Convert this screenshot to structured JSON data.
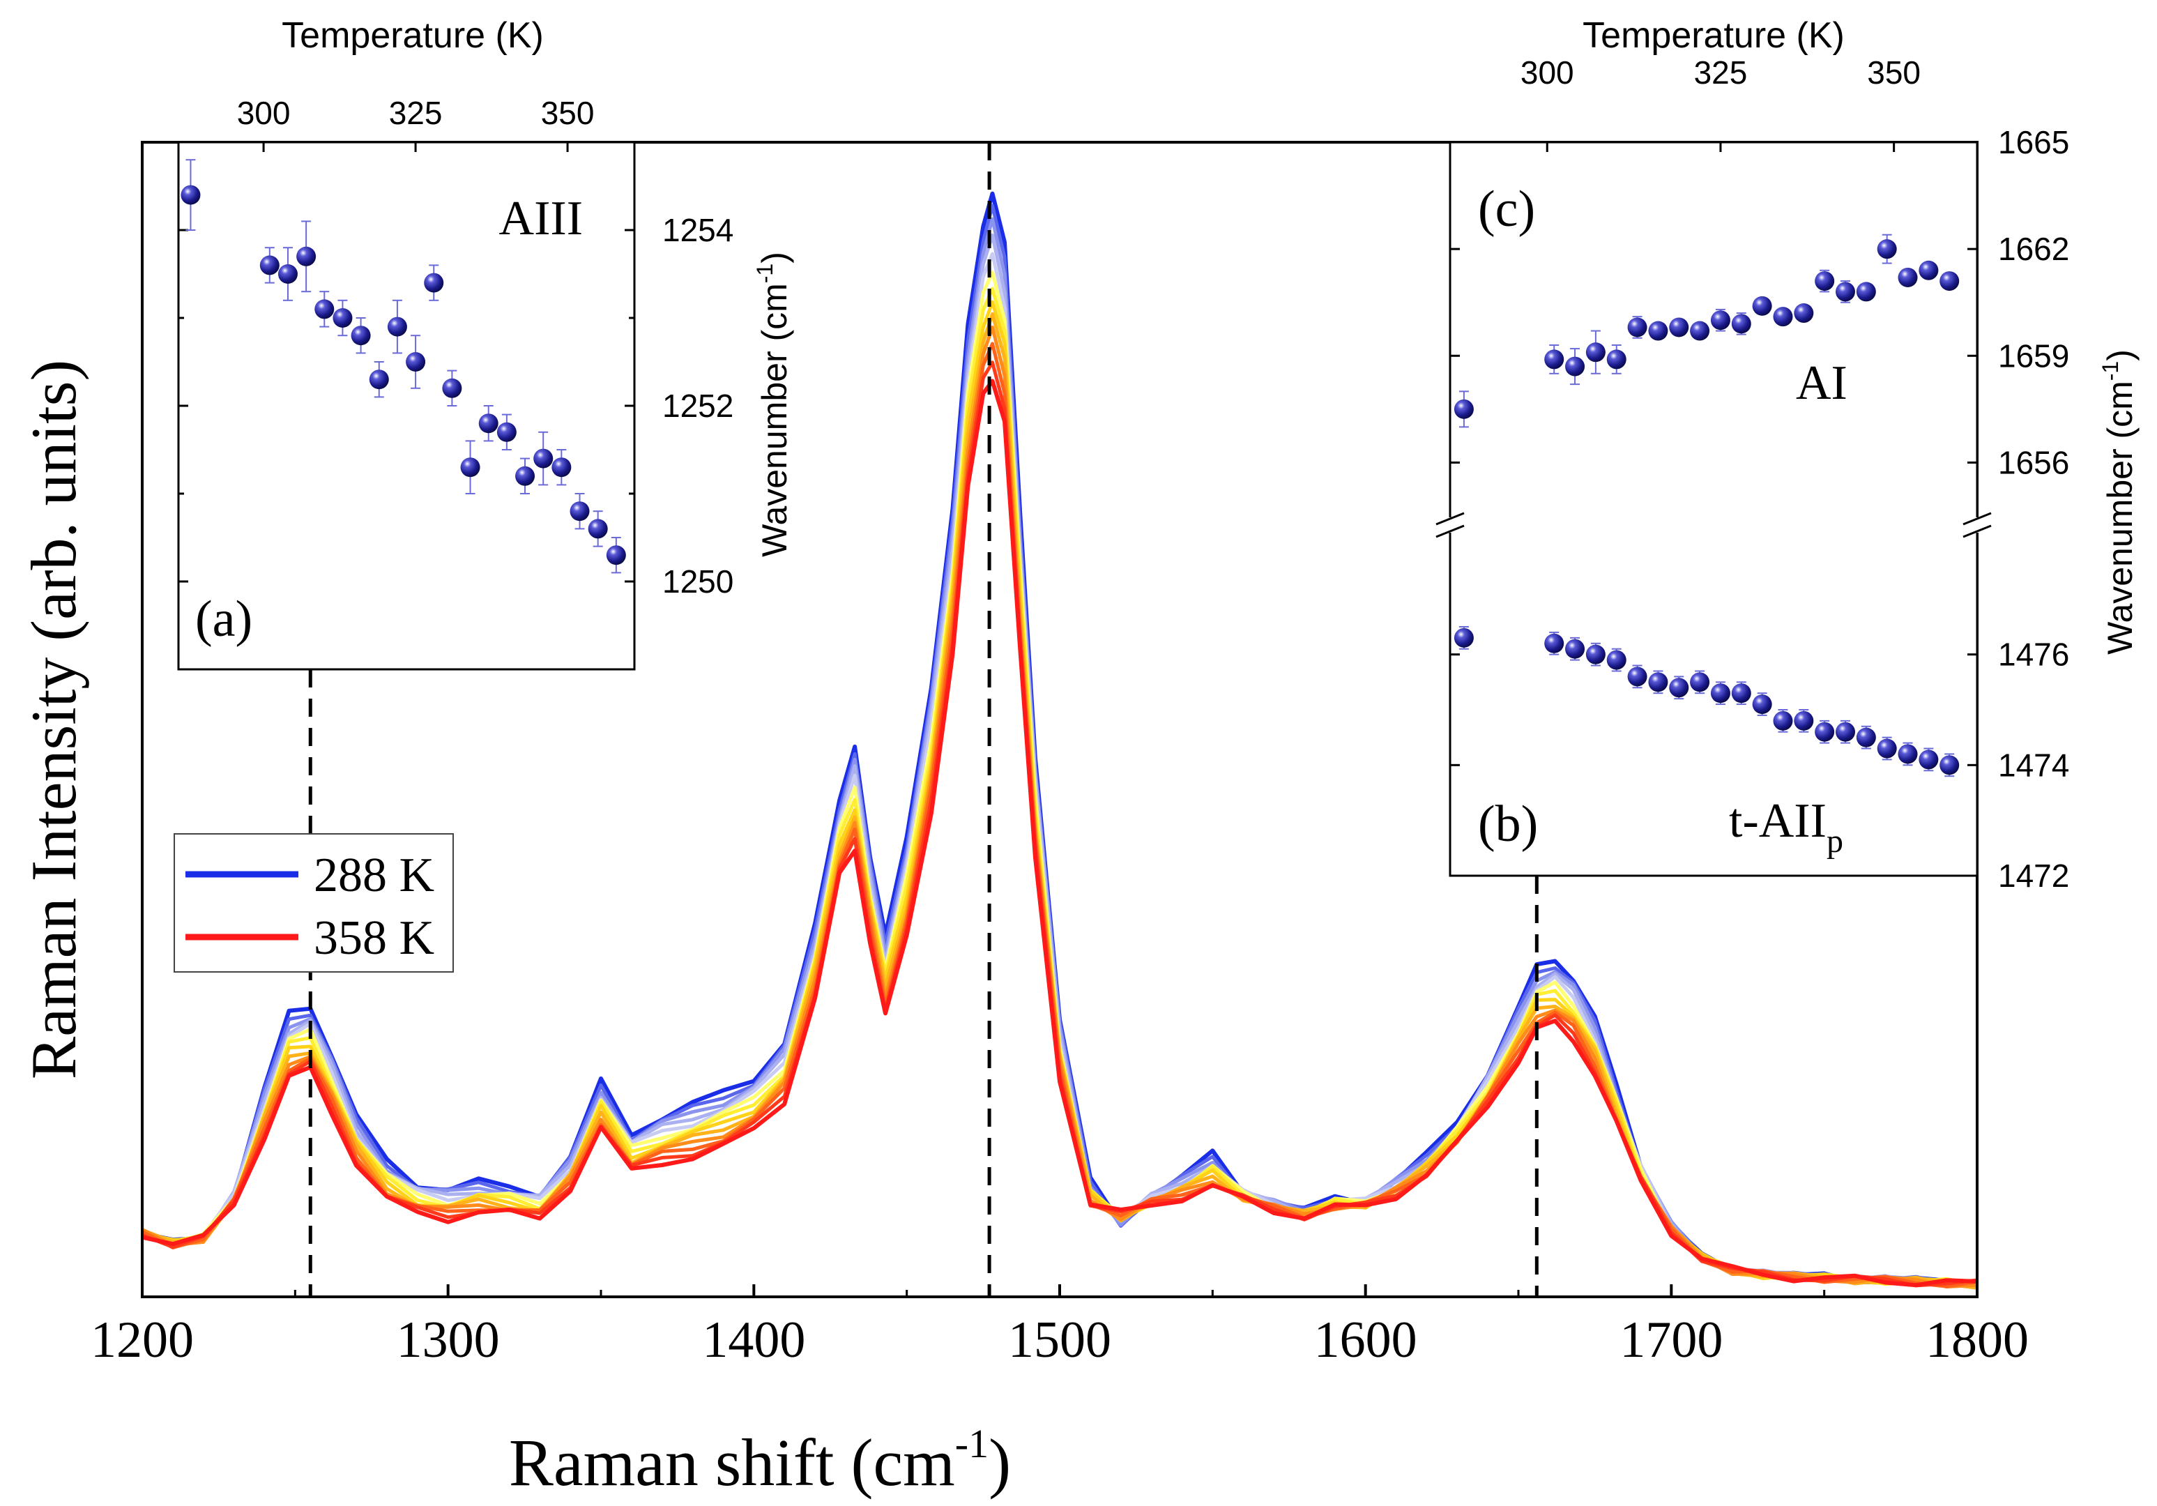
{
  "chart_data": [
    {
      "id": "main",
      "type": "line",
      "xlabel": "Raman shift (cm",
      "xlabel_sup": "-1",
      "xlabel_close": ")",
      "ylabel": "Raman Intensity (arb. units)",
      "xlim": [
        1200,
        1800
      ],
      "ylim": [
        0,
        100
      ],
      "xticks": [
        1200,
        1300,
        1400,
        1500,
        1600,
        1700,
        1800
      ],
      "peak_markers": [
        1255,
        1477,
        1656
      ],
      "legend": [
        {
          "label": "288 K",
          "color": "#1a2ee8"
        },
        {
          "label": "358 K",
          "color": "#ff1a1a"
        }
      ],
      "series_colors": [
        "#1a2ee8",
        "#5a66ec",
        "#8a93ee",
        "#aab0f0",
        "#c9ccf2",
        "#ffff70",
        "#ffee33",
        "#ffd21a",
        "#ffb21a",
        "#ff8c1a",
        "#ff621a",
        "#ff3a1a",
        "#ff1a1a"
      ],
      "spectrum_288K": {
        "x": [
          1200,
          1210,
          1220,
          1230,
          1240,
          1248,
          1255,
          1262,
          1270,
          1280,
          1290,
          1300,
          1310,
          1320,
          1330,
          1340,
          1350,
          1360,
          1370,
          1380,
          1390,
          1400,
          1410,
          1420,
          1428,
          1433,
          1438,
          1443,
          1450,
          1458,
          1465,
          1470,
          1475,
          1478,
          1482,
          1487,
          1492,
          1500,
          1510,
          1520,
          1530,
          1540,
          1550,
          1560,
          1570,
          1580,
          1590,
          1600,
          1610,
          1620,
          1630,
          1640,
          1650,
          1656,
          1662,
          1668,
          1675,
          1682,
          1690,
          1700,
          1710,
          1720,
          1730,
          1740,
          1750,
          1760,
          1770,
          1780,
          1790,
          1800
        ],
        "y": [
          5.5,
          4.6,
          5.2,
          9,
          18,
          24.5,
          25.2,
          21,
          15.5,
          11.8,
          9.8,
          9.3,
          9.9,
          9.6,
          9,
          12,
          18.6,
          14.2,
          15.6,
          16.6,
          17.7,
          19,
          22,
          32,
          43,
          48,
          38,
          31,
          40,
          53,
          68,
          84,
          93,
          95.7,
          91,
          68,
          47,
          24,
          10,
          6.4,
          8.8,
          10.3,
          12.4,
          9.2,
          8.2,
          7.4,
          8.6,
          8.4,
          10.1,
          12.2,
          15.2,
          19.5,
          25,
          28.5,
          29.3,
          27.6,
          24,
          18.3,
          11.6,
          6.3,
          3.4,
          2.3,
          2,
          1.8,
          1.7,
          1.5,
          1.5,
          1.4,
          1.2,
          1.1
        ]
      },
      "spectrum_358K": {
        "x": [
          1200,
          1210,
          1220,
          1230,
          1240,
          1248,
          1255,
          1262,
          1270,
          1280,
          1290,
          1300,
          1310,
          1320,
          1330,
          1340,
          1350,
          1360,
          1370,
          1380,
          1390,
          1400,
          1410,
          1420,
          1428,
          1433,
          1438,
          1443,
          1450,
          1458,
          1465,
          1470,
          1475,
          1478,
          1482,
          1487,
          1492,
          1500,
          1510,
          1520,
          1530,
          1540,
          1550,
          1560,
          1570,
          1580,
          1590,
          1600,
          1610,
          1620,
          1630,
          1640,
          1650,
          1656,
          1662,
          1668,
          1675,
          1682,
          1690,
          1700,
          1710,
          1720,
          1730,
          1740,
          1750,
          1760,
          1770,
          1780,
          1790,
          1800
        ],
        "y": [
          5.5,
          4.6,
          5,
          8,
          14,
          19,
          19.6,
          16,
          11.6,
          8.4,
          7.2,
          6.8,
          7.4,
          7.2,
          6.8,
          9.5,
          14.6,
          10.8,
          11.6,
          12.2,
          13,
          14.4,
          17,
          26,
          36.4,
          38.6,
          31,
          24.5,
          31,
          42,
          56,
          70,
          78,
          79.6,
          76,
          56,
          38,
          19,
          8,
          7.2,
          8,
          8.6,
          9.5,
          8.4,
          7.5,
          7,
          7.7,
          7.8,
          8.8,
          10.6,
          13.2,
          16.5,
          20.6,
          23.2,
          23.6,
          22.3,
          19.4,
          15,
          9.9,
          5.6,
          3.4,
          2.3,
          1.9,
          1.7,
          1.6,
          1.5,
          1.4,
          1.3,
          1.2,
          1.1
        ]
      }
    },
    {
      "id": "inset-a",
      "type": "scatter",
      "panel_label": "(a)",
      "mode_label": "AIII",
      "xlabel": "Temperature (K)",
      "ylabel": "Wavenumber (cm",
      "ylabel_sup": "-1",
      "ylabel_close": ")",
      "xlim": [
        286,
        361
      ],
      "ylim": [
        1249.0,
        1255.0
      ],
      "xticks": [
        300,
        325,
        350
      ],
      "yticks": [
        1250,
        1252,
        1254
      ],
      "marker_color": "#1a1a8c",
      "points": [
        {
          "t": 288,
          "v": 1254.4,
          "err": 0.4
        },
        {
          "t": 301,
          "v": 1253.6,
          "err": 0.2
        },
        {
          "t": 304,
          "v": 1253.5,
          "err": 0.3
        },
        {
          "t": 307,
          "v": 1253.7,
          "err": 0.4
        },
        {
          "t": 310,
          "v": 1253.1,
          "err": 0.2
        },
        {
          "t": 313,
          "v": 1253.0,
          "err": 0.2
        },
        {
          "t": 316,
          "v": 1252.8,
          "err": 0.2
        },
        {
          "t": 319,
          "v": 1252.3,
          "err": 0.2
        },
        {
          "t": 322,
          "v": 1252.9,
          "err": 0.3
        },
        {
          "t": 325,
          "v": 1252.5,
          "err": 0.3
        },
        {
          "t": 328,
          "v": 1253.4,
          "err": 0.2
        },
        {
          "t": 331,
          "v": 1252.2,
          "err": 0.2
        },
        {
          "t": 334,
          "v": 1251.3,
          "err": 0.3
        },
        {
          "t": 337,
          "v": 1251.8,
          "err": 0.2
        },
        {
          "t": 340,
          "v": 1251.7,
          "err": 0.2
        },
        {
          "t": 343,
          "v": 1251.2,
          "err": 0.2
        },
        {
          "t": 346,
          "v": 1251.4,
          "err": 0.3
        },
        {
          "t": 349,
          "v": 1251.3,
          "err": 0.2
        },
        {
          "t": 352,
          "v": 1250.8,
          "err": 0.2
        },
        {
          "t": 355,
          "v": 1250.6,
          "err": 0.2
        },
        {
          "t": 358,
          "v": 1250.3,
          "err": 0.2
        }
      ]
    },
    {
      "id": "inset-bc",
      "type": "scatter",
      "xlabel": "Temperature (K)",
      "ylabel": "Wavenumber (cm",
      "ylabel_sup": "-1",
      "ylabel_close": ")",
      "xlim": [
        286,
        362
      ],
      "xticks": [
        300,
        325,
        350
      ],
      "marker_color": "#1a1a8c",
      "upper": {
        "panel_label": "(c)",
        "mode_label": "AI",
        "ylim": [
          1654.5,
          1665.0
        ],
        "yticks": [
          1656,
          1659,
          1662,
          1665
        ],
        "points": [
          {
            "t": 288,
            "v": 1657.5,
            "err": 0.5
          },
          {
            "t": 301,
            "v": 1658.9,
            "err": 0.4
          },
          {
            "t": 304,
            "v": 1658.7,
            "err": 0.5
          },
          {
            "t": 307,
            "v": 1659.1,
            "err": 0.6
          },
          {
            "t": 310,
            "v": 1658.9,
            "err": 0.4
          },
          {
            "t": 313,
            "v": 1659.8,
            "err": 0.3
          },
          {
            "t": 316,
            "v": 1659.7,
            "err": 0.2
          },
          {
            "t": 319,
            "v": 1659.8,
            "err": 0.2
          },
          {
            "t": 322,
            "v": 1659.7,
            "err": 0.2
          },
          {
            "t": 325,
            "v": 1660.0,
            "err": 0.3
          },
          {
            "t": 328,
            "v": 1659.9,
            "err": 0.3
          },
          {
            "t": 331,
            "v": 1660.4,
            "err": 0.2
          },
          {
            "t": 334,
            "v": 1660.1,
            "err": 0.2
          },
          {
            "t": 337,
            "v": 1660.2,
            "err": 0.2
          },
          {
            "t": 340,
            "v": 1661.1,
            "err": 0.3
          },
          {
            "t": 343,
            "v": 1660.8,
            "err": 0.3
          },
          {
            "t": 346,
            "v": 1660.8,
            "err": 0.2
          },
          {
            "t": 349,
            "v": 1662.0,
            "err": 0.4
          },
          {
            "t": 352,
            "v": 1661.2,
            "err": 0.2
          },
          {
            "t": 355,
            "v": 1661.4,
            "err": 0.2
          },
          {
            "t": 358,
            "v": 1661.1,
            "err": 0.2
          }
        ]
      },
      "lower": {
        "panel_label": "(b)",
        "mode_label": "t-AII",
        "mode_label_sub": "p",
        "ylim": [
          1472.0,
          1478.0
        ],
        "yticks": [
          1472,
          1474,
          1476
        ],
        "points": [
          {
            "t": 288,
            "v": 1476.3,
            "err": 0.2
          },
          {
            "t": 301,
            "v": 1476.2,
            "err": 0.2
          },
          {
            "t": 304,
            "v": 1476.1,
            "err": 0.2
          },
          {
            "t": 307,
            "v": 1476.0,
            "err": 0.2
          },
          {
            "t": 310,
            "v": 1475.9,
            "err": 0.2
          },
          {
            "t": 313,
            "v": 1475.6,
            "err": 0.2
          },
          {
            "t": 316,
            "v": 1475.5,
            "err": 0.2
          },
          {
            "t": 319,
            "v": 1475.4,
            "err": 0.2
          },
          {
            "t": 322,
            "v": 1475.5,
            "err": 0.2
          },
          {
            "t": 325,
            "v": 1475.3,
            "err": 0.2
          },
          {
            "t": 328,
            "v": 1475.3,
            "err": 0.2
          },
          {
            "t": 331,
            "v": 1475.1,
            "err": 0.2
          },
          {
            "t": 334,
            "v": 1474.8,
            "err": 0.2
          },
          {
            "t": 337,
            "v": 1474.8,
            "err": 0.2
          },
          {
            "t": 340,
            "v": 1474.6,
            "err": 0.2
          },
          {
            "t": 343,
            "v": 1474.6,
            "err": 0.2
          },
          {
            "t": 346,
            "v": 1474.5,
            "err": 0.2
          },
          {
            "t": 349,
            "v": 1474.3,
            "err": 0.2
          },
          {
            "t": 352,
            "v": 1474.2,
            "err": 0.2
          },
          {
            "t": 355,
            "v": 1474.1,
            "err": 0.2
          },
          {
            "t": 358,
            "v": 1474.0,
            "err": 0.2
          }
        ]
      }
    }
  ]
}
